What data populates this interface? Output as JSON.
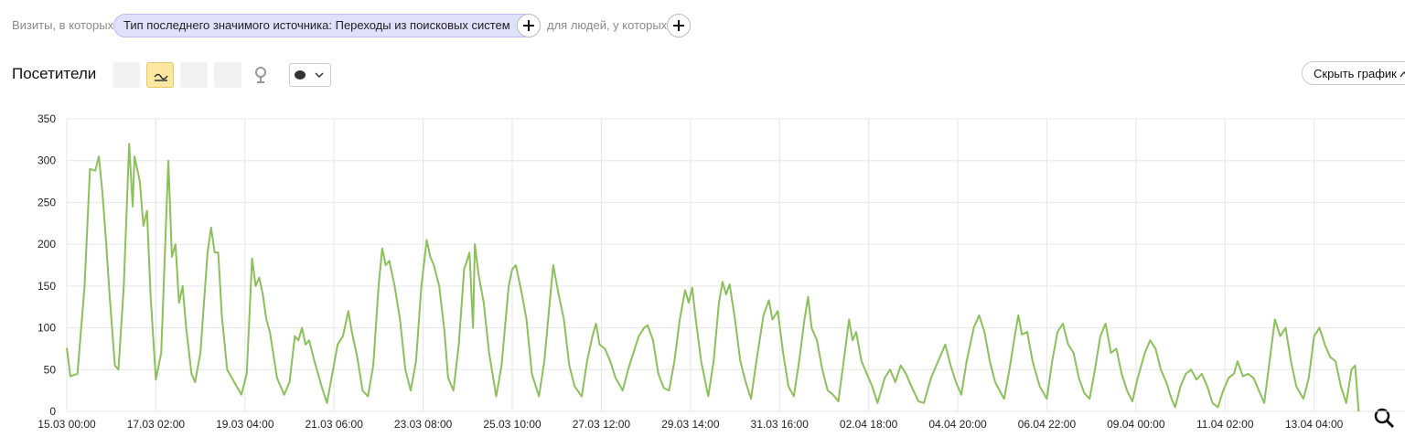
{
  "filters": {
    "prefix": "Визиты, в которых",
    "chip": "Тип последнего значимого источника: Переходы из поисковых систем",
    "suffix": "для людей, у которых"
  },
  "toolbar": {
    "title": "Посетители",
    "hide_button": "Скрыть график"
  },
  "chart_data": {
    "type": "line",
    "xlim": [
      0,
      751
    ],
    "ylim": [
      0,
      350
    ],
    "yticks": [
      0,
      50,
      100,
      150,
      200,
      250,
      300,
      350
    ],
    "xticks": [
      {
        "value": 0,
        "label": "15.03 00:00"
      },
      {
        "value": 50,
        "label": "17.03 02:00"
      },
      {
        "value": 100,
        "label": "19.03 04:00"
      },
      {
        "value": 150,
        "label": "21.03 06:00"
      },
      {
        "value": 200,
        "label": "23.03 08:00"
      },
      {
        "value": 250,
        "label": "25.03 10:00"
      },
      {
        "value": 300,
        "label": "27.03 12:00"
      },
      {
        "value": 350,
        "label": "29.03 14:00"
      },
      {
        "value": 400,
        "label": "31.03 16:00"
      },
      {
        "value": 450,
        "label": "02.04 18:00"
      },
      {
        "value": 500,
        "label": "04.04 20:00"
      },
      {
        "value": 550,
        "label": "06.04 22:00"
      },
      {
        "value": 600,
        "label": "09.04 00:00"
      },
      {
        "value": 650,
        "label": "11.04 02:00"
      },
      {
        "value": 700,
        "label": "13.04 04:00"
      }
    ],
    "grid": true,
    "x": [
      0,
      2,
      6,
      10,
      13,
      16,
      18,
      20,
      22,
      24,
      27,
      29,
      32,
      35,
      37,
      38,
      41,
      43,
      45,
      47,
      50,
      53,
      57,
      59,
      61,
      63,
      65,
      67,
      70,
      72,
      75,
      79,
      81,
      83,
      85,
      87,
      90,
      98,
      101,
      104,
      106,
      108,
      110,
      112,
      114,
      118,
      122,
      125,
      128,
      130,
      132,
      134,
      136,
      139,
      143,
      146,
      149,
      152,
      155,
      158,
      160,
      163,
      166,
      169,
      172,
      175,
      177,
      179,
      181,
      184,
      187,
      190,
      193,
      196,
      199,
      202,
      204,
      206,
      209,
      212,
      214,
      217,
      220,
      223,
      226,
      228,
      229,
      231,
      234,
      237,
      241,
      244,
      248,
      250,
      252,
      255,
      258,
      261,
      265,
      268,
      271,
      273,
      276,
      279,
      282,
      285,
      289,
      292,
      295,
      297,
      299,
      302,
      305,
      308,
      312,
      315,
      318,
      321,
      324,
      326,
      329,
      332,
      335,
      338,
      341,
      344,
      347,
      349,
      351,
      353,
      356,
      360,
      363,
      366,
      368,
      370,
      372,
      375,
      378,
      381,
      384,
      387,
      391,
      394,
      396,
      399,
      402,
      405,
      408,
      411,
      414,
      416,
      418,
      421,
      424,
      427,
      430,
      433,
      436,
      439,
      441,
      443,
      446,
      449,
      452,
      455,
      459,
      462,
      465,
      468,
      471,
      474,
      478,
      481,
      485,
      489,
      493,
      496,
      499,
      502,
      505,
      509,
      512,
      515,
      518,
      521,
      526,
      529,
      532,
      534,
      536,
      539,
      542,
      546,
      550,
      553,
      556,
      559,
      562,
      565,
      568,
      571,
      574,
      577,
      580,
      583,
      586,
      589,
      592,
      595,
      598,
      601,
      605,
      608,
      611,
      614,
      617,
      620,
      622,
      625,
      628,
      631,
      634,
      637,
      640,
      643,
      646,
      649,
      652,
      655,
      657,
      660,
      663,
      666,
      669,
      672,
      675,
      678,
      681,
      684,
      687,
      690,
      694,
      697,
      700,
      703,
      706,
      709,
      712,
      715,
      718,
      721,
      723,
      725
    ],
    "series": [
      {
        "color": "#8bc05a",
        "values": [
          76,
          42,
          45,
          150,
          290,
          288,
          305,
          262,
          205,
          140,
          55,
          50,
          150,
          320,
          245,
          305,
          275,
          222,
          240,
          140,
          38,
          70,
          300,
          185,
          200,
          130,
          150,
          100,
          45,
          35,
          70,
          190,
          220,
          190,
          190,
          115,
          50,
          20,
          45,
          183,
          150,
          160,
          140,
          110,
          95,
          40,
          20,
          35,
          90,
          85,
          100,
          80,
          85,
          60,
          30,
          10,
          45,
          80,
          90,
          120,
          95,
          65,
          25,
          18,
          55,
          150,
          195,
          175,
          180,
          150,
          110,
          50,
          25,
          60,
          150,
          205,
          185,
          175,
          150,
          95,
          40,
          25,
          80,
          170,
          190,
          100,
          200,
          165,
          130,
          70,
          18,
          55,
          150,
          170,
          175,
          145,
          110,
          45,
          18,
          60,
          130,
          175,
          140,
          110,
          55,
          30,
          18,
          60,
          90,
          105,
          80,
          75,
          60,
          40,
          25,
          50,
          70,
          90,
          100,
          103,
          85,
          45,
          28,
          25,
          60,
          110,
          145,
          130,
          148,
          110,
          60,
          18,
          60,
          130,
          155,
          140,
          152,
          110,
          60,
          35,
          15,
          60,
          115,
          133,
          110,
          120,
          70,
          30,
          18,
          60,
          110,
          137,
          100,
          85,
          50,
          25,
          20,
          12,
          60,
          110,
          85,
          95,
          60,
          45,
          30,
          10,
          40,
          50,
          35,
          55,
          45,
          30,
          12,
          10,
          40,
          60,
          80,
          55,
          35,
          20,
          60,
          100,
          115,
          95,
          60,
          35,
          15,
          50,
          90,
          115,
          92,
          95,
          60,
          30,
          15,
          60,
          95,
          105,
          80,
          70,
          40,
          22,
          15,
          50,
          90,
          105,
          70,
          75,
          45,
          25,
          12,
          40,
          70,
          85,
          75,
          50,
          35,
          15,
          5,
          30,
          45,
          50,
          38,
          45,
          30,
          10,
          5,
          25,
          40,
          45,
          60,
          42,
          45,
          40,
          25,
          10,
          60,
          110,
          90,
          100,
          60,
          30,
          15,
          40,
          90,
          100,
          80,
          65,
          60,
          30,
          10,
          50,
          55,
          0
        ]
      }
    ]
  }
}
